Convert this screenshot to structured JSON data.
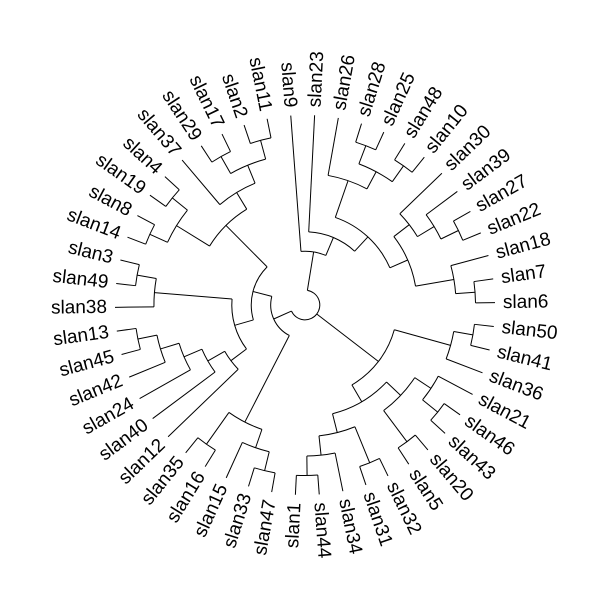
{
  "leaves": [
    "slan9",
    "slan23",
    "slan26",
    "slan28",
    "slan25",
    "slan48",
    "slan10",
    "slan30",
    "slan39",
    "slan27",
    "slan22",
    "slan18",
    "slan7",
    "slan6",
    "slan50",
    "slan41",
    "slan36",
    "slan21",
    "slan46",
    "slan43",
    "slan20",
    "slan5",
    "slan32",
    "slan31",
    "slan34",
    "slan44",
    "slan1",
    "slan47",
    "slan33",
    "slan15",
    "slan16",
    "slan35",
    "slan12",
    "slan40",
    "slan24",
    "slan42",
    "slan45",
    "slan13",
    "slan38",
    "slan49",
    "slan3",
    "slan14",
    "slan8",
    "slan19",
    "slan4",
    "slan37",
    "slan29",
    "slan17",
    "slan2",
    "slan11"
  ],
  "tree": [
    "slan9",
    [
      "slan23",
      [
        [
          "slan26",
          [
            [
              "slan28",
              "slan25"
            ],
            [
              "slan48",
              "slan10"
            ]
          ]
        ],
        [
          [
            "slan30",
            [
              "slan39",
              [
                "slan27",
                "slan22"
              ]
            ]
          ],
          [
            "slan18",
            [
              "slan7",
              "slan6"
            ]
          ]
        ]
      ]
    ]
  ],
  "tree2": [
    [
      [
        "slan50",
        "slan41"
      ],
      "slan36"
    ],
    [
      [
        [
          "slan21",
          [
            "slan46",
            "slan43"
          ]
        ],
        [
          "slan20",
          "slan5"
        ]
      ],
      [
        [
          "slan32",
          "slan31"
        ],
        [
          "slan34",
          [
            "slan44",
            "slan1"
          ]
        ]
      ]
    ]
  ],
  "tree3": [
    [
      [
        [
          "slan47",
          "slan33"
        ],
        "slan15"
      ],
      [
        "slan16",
        "slan35"
      ]
    ],
    [
      [
        [
          "slan12",
          [
            "slan40",
            [
              "slan24",
              [
                "slan42",
                [
                  "slan45",
                  "slan13"
                ]
              ]
            ]
          ]
        ],
        [
          "slan38",
          [
            "slan49",
            "slan3"
          ]
        ]
      ],
      [
        [
          [
            "slan14",
            "slan8"
          ],
          [
            "slan19",
            "slan4"
          ]
        ],
        [
          "slan37",
          [
            [
              "slan29",
              "slan17"
            ],
            [
              "slan2",
              "slan11"
            ]
          ]
        ]
      ]
    ]
  ]
}
